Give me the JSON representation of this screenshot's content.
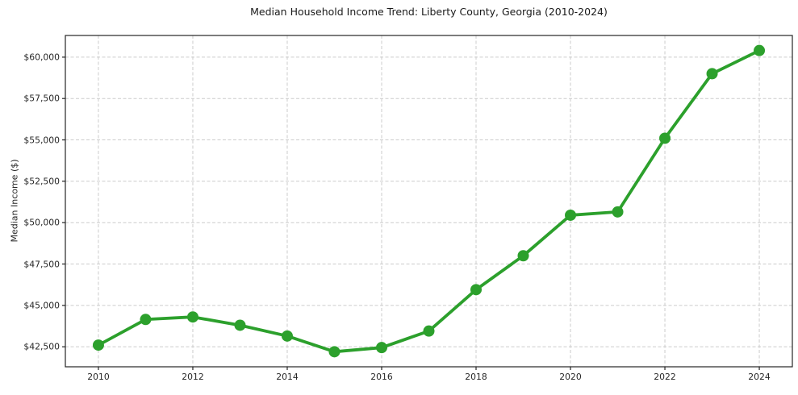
{
  "chart_data": {
    "type": "line",
    "title": "Median Household Income Trend: Liberty County, Georgia (2010-2024)",
    "xlabel": "",
    "ylabel": "Median Income ($)",
    "series_name": "Median Household Income",
    "x": [
      2010,
      2011,
      2012,
      2013,
      2014,
      2015,
      2016,
      2017,
      2018,
      2019,
      2020,
      2021,
      2022,
      2023,
      2024
    ],
    "values": [
      42600,
      44150,
      44300,
      43800,
      43150,
      42200,
      42450,
      43450,
      45950,
      48000,
      50450,
      50650,
      55100,
      59000,
      60400
    ],
    "xlim": [
      2009.3,
      2024.7
    ],
    "ylim": [
      41290,
      61310
    ],
    "xticks": [
      2010,
      2012,
      2014,
      2016,
      2018,
      2020,
      2022,
      2024
    ],
    "xtick_labels": [
      "2010",
      "2012",
      "2014",
      "2016",
      "2018",
      "2020",
      "2022",
      "2024"
    ],
    "yticks": [
      42500,
      45000,
      47500,
      50000,
      52500,
      55000,
      57500,
      60000
    ],
    "ytick_labels": [
      "$42,500",
      "$45,000",
      "$47,500",
      "$50,000",
      "$52,500",
      "$55,000",
      "$57,500",
      "$60,000"
    ],
    "grid": true,
    "grid_style": "dashed",
    "legend": "none",
    "marker": "circle",
    "colors": {
      "line": "#2ca02c",
      "marker": "#2ca02c",
      "grid": "#cccccc",
      "spine": "#262626",
      "text": "#262626",
      "background": "#ffffff"
    }
  }
}
